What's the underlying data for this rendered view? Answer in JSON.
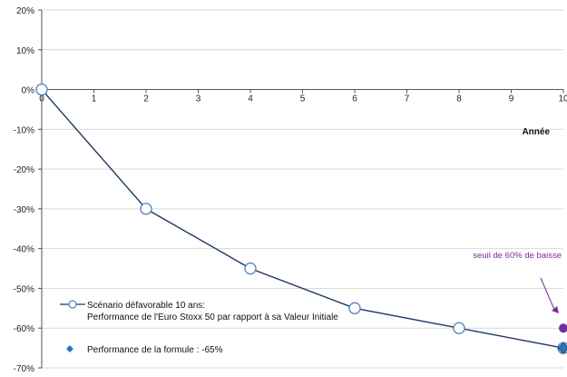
{
  "chart_data": {
    "type": "line",
    "xlabel": "Année",
    "ylabel": "",
    "xlim": [
      0,
      10
    ],
    "ylim": [
      -70,
      20
    ],
    "x_ticks": [
      0,
      1,
      2,
      3,
      4,
      5,
      6,
      7,
      8,
      9,
      10
    ],
    "y_ticks": [
      20,
      10,
      0,
      -10,
      -20,
      -30,
      -40,
      -50,
      -60,
      -70
    ],
    "y_tick_labels": [
      "20%",
      "10%",
      "0%",
      "-10%",
      "-20%",
      "-30%",
      "-40%",
      "-50%",
      "-60%",
      "-70%"
    ],
    "grid": true,
    "legend_position": "bottom-left",
    "series": [
      {
        "name": "Scénario défavorable 10 ans:",
        "name_line2": "Performance de l'Euro Stoxx 50 par rapport à sa Valeur Initiale",
        "x": [
          0,
          2,
          4,
          6,
          8,
          10
        ],
        "y": [
          0,
          -30,
          -45,
          -55,
          -60,
          -65
        ],
        "color": "#1f3864",
        "marker": "open-circle",
        "marker_color": "#4f81bd"
      },
      {
        "name": "Performance de la formule : -65%",
        "x": [
          10
        ],
        "y": [
          -65
        ],
        "color": "#2e75b6",
        "marker": "diamond"
      }
    ],
    "threshold_marker": {
      "x": 10,
      "y": -60,
      "color": "#7030a0"
    },
    "annotations": [
      {
        "text": "seuil de 60% de baisse",
        "color": "#7030a0"
      }
    ]
  }
}
